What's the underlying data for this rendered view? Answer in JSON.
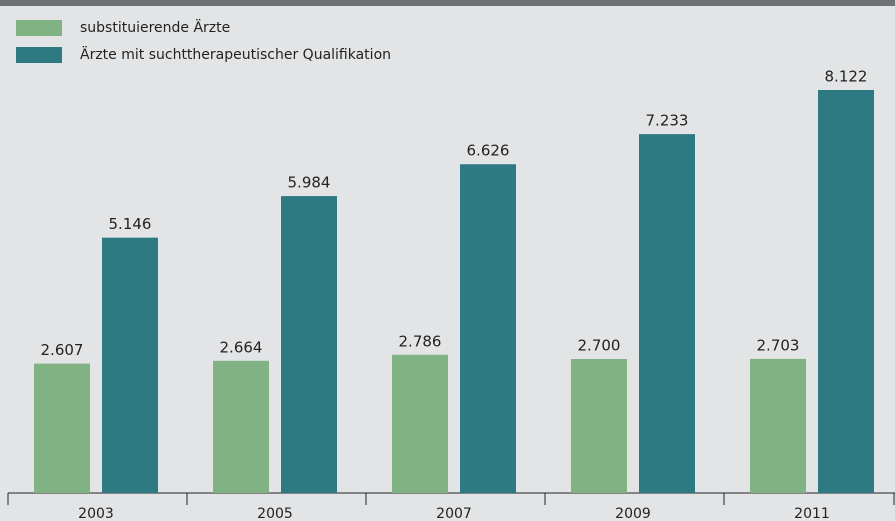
{
  "chart_data": {
    "type": "bar",
    "categories": [
      "2003",
      "2005",
      "2007",
      "2009",
      "2011"
    ],
    "series": [
      {
        "name": "substituierende Ärzte",
        "color": "#80b284",
        "values": [
          2607,
          2664,
          2786,
          2700,
          2703
        ],
        "value_labels": [
          "2.607",
          "2.664",
          "2.786",
          "2.700",
          "2.703"
        ]
      },
      {
        "name": "Ärzte mit suchttherapeutischer Qualifikation",
        "color": "#2e7a82",
        "values": [
          5146,
          5984,
          6626,
          7233,
          8122
        ],
        "value_labels": [
          "5.146",
          "5.984",
          "6.626",
          "7.233",
          "8.122"
        ]
      }
    ]
  }
}
